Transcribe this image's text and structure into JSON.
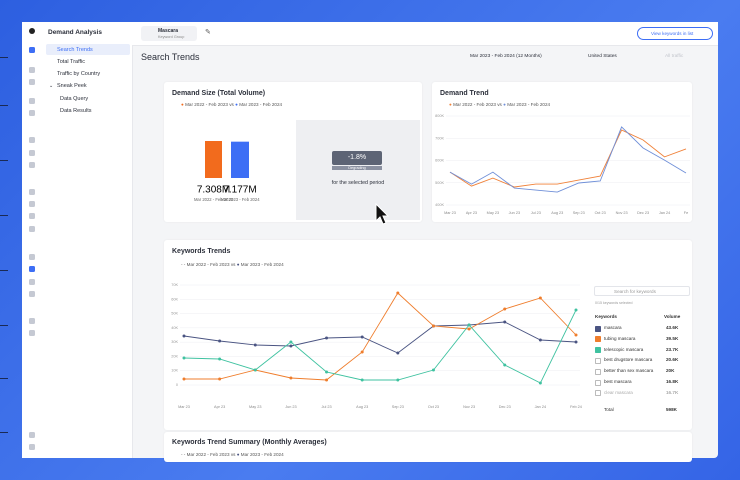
{
  "app": {
    "title": "Demand Analysis"
  },
  "tab": {
    "title": "Mascara",
    "subtitle": "Keyword Group"
  },
  "button": "View keywords in list",
  "page_title": "Search Trends",
  "filters": {
    "date": "Mar 2023 - Feb 2024 (12 Months)",
    "country": "United States",
    "traffic": "All traffic"
  },
  "sidebar": {
    "items": [
      "Search Trends",
      "Total Traffic",
      "Traffic by Country",
      "Sneak Peek",
      "Data Query",
      "Data Results"
    ]
  },
  "demand_size": {
    "title": "Demand Size (Total Volume)",
    "legend": [
      "Mar 2022 - Feb 2023",
      "vs",
      "Mar 2023 - Feb 2024"
    ],
    "bars": [
      {
        "value": 7308000,
        "label": "7.308M",
        "period": "Mar 2022 - Feb 2023",
        "color": "#f26b1d"
      },
      {
        "value": 7177000,
        "label": "7.177M",
        "period": "Mar 2023 - Feb 2024",
        "color": "#3d6ef5"
      }
    ],
    "change": {
      "value": "-1.8%",
      "status": "Degrading",
      "caption": "for the selected period"
    }
  },
  "demand_trend": {
    "title": "Demand Trend",
    "legend_vs": "vs",
    "chart_data": {
      "type": "line",
      "categories": [
        "Mar 23",
        "Apr 23",
        "May 23",
        "Jun 23",
        "Jul 23",
        "Aug 23",
        "Sep 23",
        "Oct 23",
        "Nov 23",
        "Dec 23",
        "Jan 24",
        "Fe"
      ],
      "ylim": [
        400,
        800
      ],
      "yticks": [
        {
          "value": 400,
          "label": "400K"
        },
        {
          "value": 500,
          "label": "500K"
        },
        {
          "value": 600,
          "label": "600K"
        },
        {
          "value": 700,
          "label": "700K"
        },
        {
          "value": 800,
          "label": "800K"
        }
      ],
      "grid": true,
      "series": [
        {
          "name": "Mar 2022 - Feb 2023",
          "color": "#f0823a",
          "values": [
            548,
            485,
            521,
            481,
            494,
            494,
            512,
            530,
            737,
            692,
            616,
            652
          ]
        },
        {
          "name": "Mar 2023 - Feb 2024",
          "color": "#6f8fd8",
          "values": [
            548,
            494,
            548,
            476,
            467,
            458,
            499,
            508,
            751,
            656,
            602,
            544
          ]
        }
      ]
    }
  },
  "keywords_trends": {
    "title": "Keywords Trends",
    "legend": [
      "Mar 2022 - Feb 2023",
      "vs",
      "Mar 2023 - Feb 2024"
    ],
    "chart_data": {
      "type": "line",
      "categories": [
        "Mar 23",
        "Apr 23",
        "May 23",
        "Jun 23",
        "Jul 23",
        "Aug 23",
        "Sep 23",
        "Oct 23",
        "Nov 23",
        "Dec 23",
        "Jan 24",
        "Feb 24"
      ],
      "ylim": [
        0,
        70
      ],
      "yticks": [
        {
          "value": 0,
          "label": "0"
        },
        {
          "value": 10,
          "label": "10K"
        },
        {
          "value": 20,
          "label": "20K"
        },
        {
          "value": 30,
          "label": "30K"
        },
        {
          "value": 40,
          "label": "40K"
        },
        {
          "value": 50,
          "label": "50K"
        },
        {
          "value": 60,
          "label": "60K"
        },
        {
          "value": 70,
          "label": "70K"
        }
      ],
      "grid": true,
      "series": [
        {
          "name": "mascara",
          "color": "#4a5482",
          "values": [
            34.3,
            30.8,
            28,
            27.3,
            32.9,
            33.6,
            22.4,
            41.3,
            42,
            44.1,
            31.5,
            30.1
          ]
        },
        {
          "name": "tubing mascara",
          "color": "#ef7d2c",
          "values": [
            4.2,
            4.2,
            10.5,
            4.9,
            3.5,
            23.1,
            64.4,
            41.3,
            39.2,
            53.2,
            60.9,
            35
          ]
        },
        {
          "name": "telescopic mascara",
          "color": "#3fc2a0",
          "values": [
            18.9,
            18.2,
            10.5,
            30.1,
            9.1,
            3.5,
            3.5,
            10.5,
            42,
            14,
            1.4,
            52.5
          ]
        }
      ]
    },
    "table": {
      "search_placeholder": "Search for keywords",
      "selected": "0/15 keywords selected",
      "headers": [
        "Keywords",
        "Volume"
      ],
      "rows": [
        [
          "mascara",
          "43.6K"
        ],
        [
          "tubing mascara",
          "39.5K"
        ],
        [
          "telescopic mascara",
          "23.7K"
        ],
        [
          "best drugstore mascara",
          "20.6K"
        ],
        [
          "better than sex mascara",
          "20K"
        ],
        [
          "best mascara",
          "16.8K"
        ],
        [
          "clear mascara",
          "16.7K"
        ]
      ],
      "total": [
        "Total",
        "598K"
      ]
    }
  },
  "summary": {
    "title": "Keywords Trend Summary (Monthly Averages)",
    "legend": [
      "Mar 2022 - Feb 2023",
      "vs",
      "Mar 2023 - Feb 2024"
    ]
  }
}
